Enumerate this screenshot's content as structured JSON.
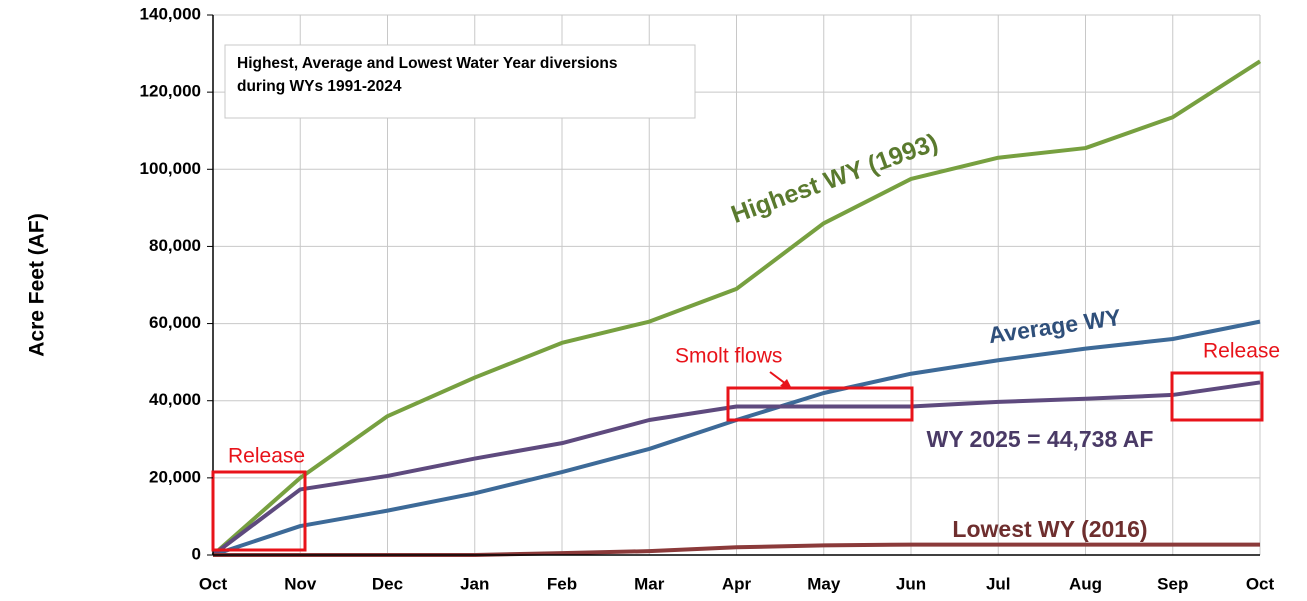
{
  "chart_data": {
    "type": "line",
    "title": "Highest, Average and Lowest Water Year diversions during WYs 1991-2024",
    "y_label": "Acre Feet (AF)",
    "categories": [
      "Oct",
      "Nov",
      "Dec",
      "Jan",
      "Feb",
      "Mar",
      "Apr",
      "May",
      "Jun",
      "Jul",
      "Aug",
      "Sep",
      "Oct"
    ],
    "series": [
      {
        "name": "Highest WY (1993)",
        "color": "#77a040",
        "values": [
          0,
          20000,
          36000,
          46000,
          55000,
          60500,
          69000,
          86000,
          97500,
          103000,
          105500,
          113500,
          128000
        ]
      },
      {
        "name": "Average WY",
        "color": "#3d6a98",
        "values": [
          0,
          7500,
          11500,
          16000,
          21500,
          27500,
          35000,
          42000,
          47000,
          50500,
          53500,
          56000,
          60500
        ]
      },
      {
        "name": "WY 2025 = 44,738 AF",
        "color": "#5e4a7e",
        "values": [
          0,
          17000,
          20500,
          25000,
          29000,
          35000,
          38500,
          38500,
          38500,
          39700,
          40500,
          41500,
          44738
        ]
      },
      {
        "name": "Lowest WY (2016)",
        "color": "#8b3a3a",
        "values": [
          0,
          0,
          0,
          0,
          500,
          1000,
          2000,
          2500,
          2700,
          2700,
          2700,
          2700,
          2700
        ]
      }
    ],
    "annotations": [
      "Release",
      "Smolt flows",
      "Release"
    ],
    "ylim": [
      0,
      140000
    ],
    "yticks": [
      0,
      {
        "value": 20000,
        "label": "20,000"
      },
      {
        "value": 40000,
        "label": "40,000"
      },
      {
        "value": 60000,
        "label": "60,000"
      },
      {
        "value": 80000,
        "label": "80,000"
      },
      {
        "value": 100000,
        "label": "100,000"
      },
      {
        "value": 120000,
        "label": "120,000"
      },
      {
        "value": 140000,
        "label": "140,000"
      }
    ],
    "grid": true
  }
}
